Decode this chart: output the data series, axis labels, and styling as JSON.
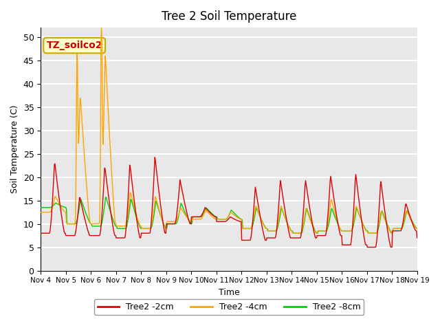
{
  "title": "Tree 2 Soil Temperature",
  "ylabel": "Soil Temperature (C)",
  "xlabel": "Time",
  "annotation_text": "TZ_soilco2",
  "annotation_color": "#cc0000",
  "annotation_bg": "#ffffcc",
  "annotation_border": "#ccaa00",
  "ylim": [
    0,
    52
  ],
  "yticks": [
    0,
    5,
    10,
    15,
    20,
    25,
    30,
    35,
    40,
    45,
    50
  ],
  "xtick_labels": [
    "Nov 4",
    "Nov 5",
    "Nov 6",
    "Nov 7",
    "Nov 8",
    "Nov 9",
    "Nov 10",
    "Nov 11",
    "Nov 12",
    "Nov 13",
    "Nov 14",
    "Nov 15",
    "Nov 16",
    "Nov 17",
    "Nov 18",
    "Nov 19"
  ],
  "bg_color": "#e8e8e8",
  "grid_color": "#ffffff",
  "line_colors": {
    "2cm": "#dd0000",
    "4cm": "#ffa500",
    "8cm": "#00cc00"
  },
  "line_width": 1.0,
  "legend_labels": [
    "Tree2 -2cm",
    "Tree2 -4cm",
    "Tree2 -8cm"
  ]
}
